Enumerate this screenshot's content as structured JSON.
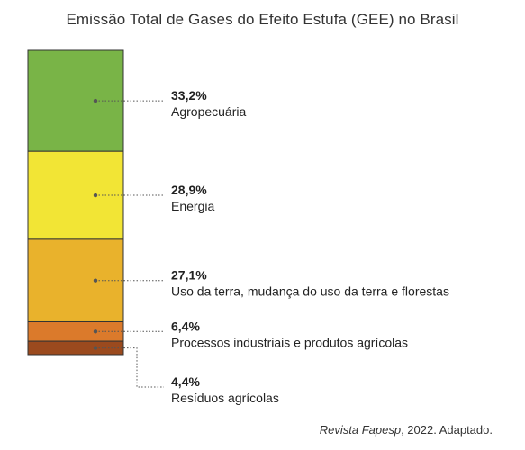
{
  "chart_data": {
    "type": "bar",
    "stacked": true,
    "title": "Emissão Total de Gases do Efeito Estufa (GEE) no Brasil",
    "categories": [
      "Agropecuária",
      "Energia",
      "Uso da terra, mudança do uso da terra e florestas",
      "Processos industriais e produtos agrícolas",
      "Resíduos agrícolas"
    ],
    "values": [
      33.2,
      28.9,
      27.1,
      6.4,
      4.4
    ],
    "value_labels": [
      "33,2%",
      "28,9%",
      "27,1%",
      "6,4%",
      "4,4%"
    ],
    "colors": [
      "#79b447",
      "#f2e535",
      "#e9b22c",
      "#db7a2b",
      "#9b4a1e"
    ],
    "unit": "%",
    "xlabel": "",
    "ylabel": "",
    "legend": "right"
  },
  "source": {
    "publication": "Revista Fapesp",
    "note": ", 2022. Adaptado."
  }
}
